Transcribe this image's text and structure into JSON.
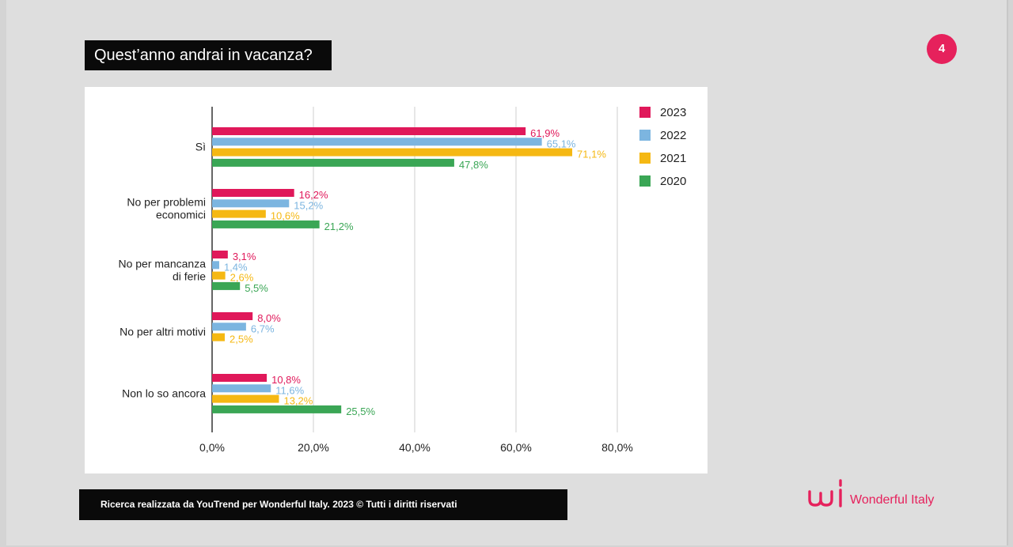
{
  "slide": {
    "title": "Quest’anno andrai in vacanza?",
    "page_number": "4",
    "footer": "Ricerca realizzata da YouTrend per  Wonderful Italy. 2023 © Tutti i diritti riservati",
    "brand_name": "Wonderful Italy",
    "brand_logo_icon": "wi-logo-icon",
    "colors": {
      "accent": "#e6215c"
    }
  },
  "chart_data": {
    "type": "bar",
    "orientation": "horizontal",
    "title": "",
    "xlabel": "",
    "ylabel": "",
    "xlim": [
      0,
      80
    ],
    "x_ticks": [
      "0,0%",
      "20,0%",
      "40,0%",
      "60,0%",
      "80,0%"
    ],
    "grid": true,
    "legend_position": "top-right",
    "categories": [
      [
        "Sì"
      ],
      [
        "No per problemi",
        "economici"
      ],
      [
        "No per mancanza",
        "di ferie"
      ],
      [
        "No per altri motivi"
      ],
      [
        "Non lo so ancora"
      ]
    ],
    "series": [
      {
        "name": "2023",
        "color": "#e0185a",
        "values": [
          61.9,
          16.2,
          3.1,
          8.0,
          10.8
        ],
        "labels": [
          "61,9%",
          "16,2%",
          "3,1%",
          "8,0%",
          "10,8%"
        ]
      },
      {
        "name": "2022",
        "color": "#7cb5e0",
        "values": [
          65.1,
          15.2,
          1.4,
          6.7,
          11.6
        ],
        "labels": [
          "65,1%",
          "15,2%",
          "1,4%",
          "6,7%",
          "11,6%"
        ]
      },
      {
        "name": "2021",
        "color": "#f5b813",
        "values": [
          71.1,
          10.6,
          2.6,
          2.5,
          13.2
        ],
        "labels": [
          "71,1%",
          "10,6%",
          "2,6%",
          "2,5%",
          "13,2%"
        ]
      },
      {
        "name": "2020",
        "color": "#3aa655",
        "values": [
          47.8,
          21.2,
          5.5,
          null,
          25.5
        ],
        "labels": [
          "47,8%",
          "21,2%",
          "5,5%",
          null,
          "25,5%"
        ]
      }
    ]
  }
}
